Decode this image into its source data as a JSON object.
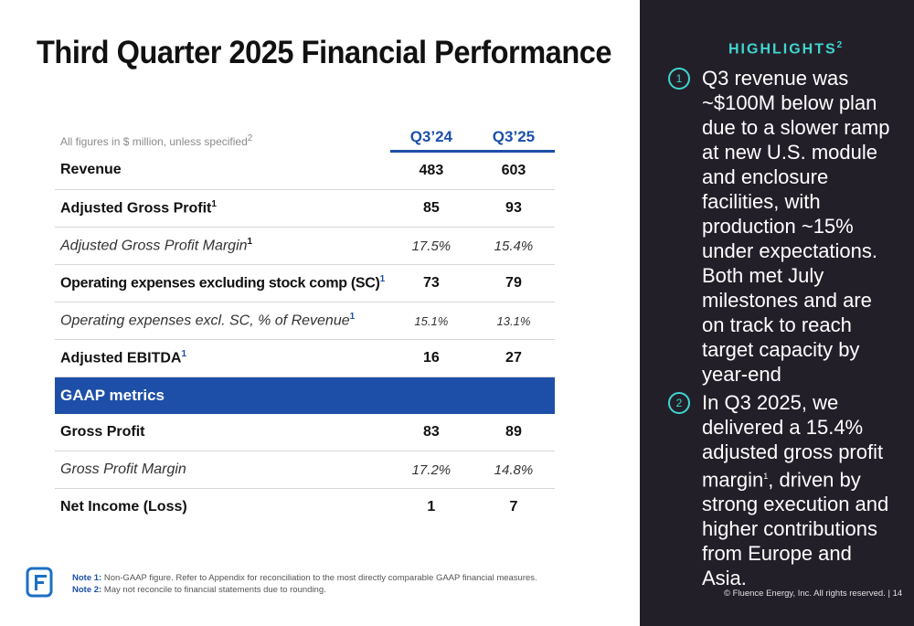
{
  "title": "Third Quarter 2025 Financial Performance",
  "table": {
    "caption": "All figures in $ million, unless specified",
    "caption_sup": "2",
    "columns": [
      "Q3’24",
      "Q3’25"
    ],
    "rows": [
      {
        "label": "Revenue",
        "sup": "",
        "q3_24": "483",
        "q3_25": "603"
      },
      {
        "label": "Adjusted Gross Profit",
        "sup": "1",
        "q3_24": "85",
        "q3_25": "93"
      },
      {
        "label": "Adjusted Gross Profit Margin",
        "sup": "1",
        "q3_24": "17.5%",
        "q3_25": "15.4%"
      },
      {
        "label": "Operating expenses excluding stock comp (SC)",
        "sup": "1",
        "q3_24": "73",
        "q3_25": "79"
      },
      {
        "label": "Operating expenses excl. SC, % of Revenue",
        "sup": "1",
        "q3_24": "15.1%",
        "q3_25": "13.1%"
      },
      {
        "label": "Adjusted EBITDA",
        "sup": "1",
        "q3_24": "16",
        "q3_25": "27"
      }
    ],
    "section_label": "GAAP metrics",
    "gaap_rows": [
      {
        "label": "Gross Profit",
        "q3_24": "83",
        "q3_25": "89"
      },
      {
        "label": "Gross Profit Margin",
        "q3_24": "17.2%",
        "q3_25": "14.8%"
      },
      {
        "label": "Net Income (Loss)",
        "q3_24": "1",
        "q3_25": "7"
      }
    ]
  },
  "notes": {
    "note1_label": "Note 1:",
    "note1_text": " Non-GAAP figure. Refer to Appendix for reconciliation to the most directly comparable GAAP financial measures.",
    "note2_label": "Note 2:",
    "note2_text": " May not reconcile to financial statements due to rounding."
  },
  "highlights": {
    "heading": "HIGHLIGHTS",
    "heading_sup": "2",
    "item1_num": "1",
    "item1_text": "Q3 revenue was ~$100M below plan due to a slower ramp at new U.S. module and enclosure facilities, with production ~15% under expectations. Both met July milestones and are on track to reach target capacity by year-end",
    "item2_num": "2",
    "item2_before": "In Q3 2025, we delivered a 15.4% adjusted gross profit margin",
    "item2_sup": "1",
    "item2_after": ", driven by strong execution and higher contributions from Europe and Asia."
  },
  "footer": "© Fluence Energy, Inc. All rights reserved. | 14",
  "colors": {
    "accent_blue": "#1d4fa8",
    "teal": "#3fd6cf",
    "panel_dark": "#231f29"
  },
  "icons": {
    "logo": "fluence-f-logo-icon"
  }
}
